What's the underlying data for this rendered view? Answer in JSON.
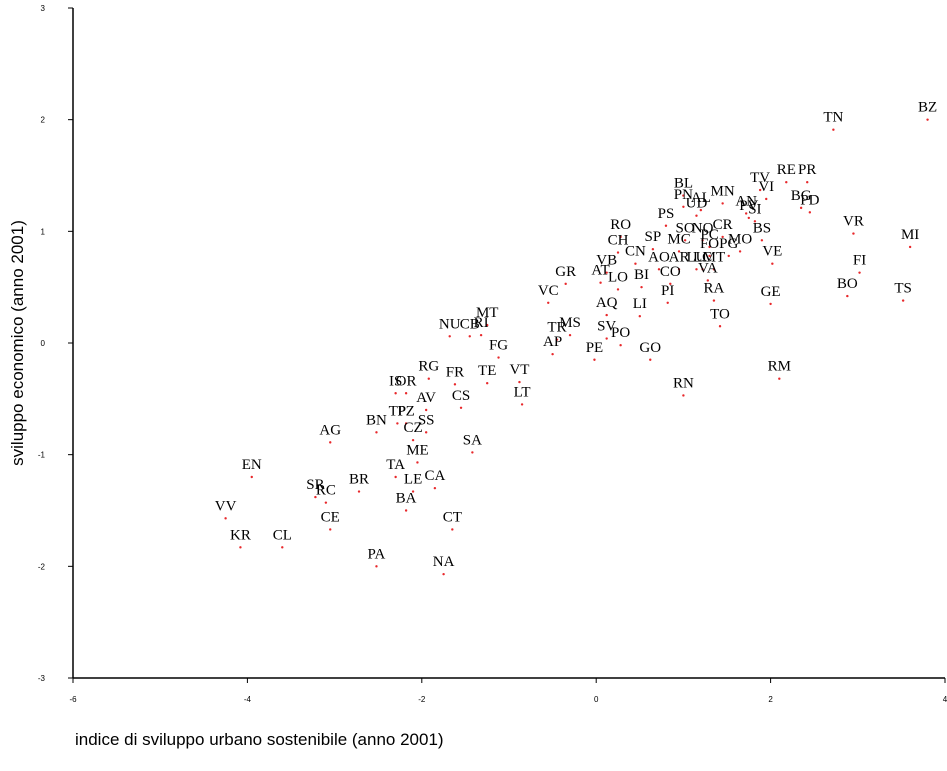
{
  "chart_data": {
    "type": "scatter",
    "xlabel": "indice di sviluppo urbano sostenibile (anno 2001)",
    "ylabel": "sviluppo economico (anno 2001)",
    "xlim": [
      -6,
      4
    ],
    "ylim": [
      -3,
      3
    ],
    "xticks": [
      -6,
      -4,
      -2,
      0,
      2,
      4
    ],
    "yticks": [
      -3,
      -2,
      -1,
      0,
      1,
      2,
      3
    ],
    "grid": false,
    "point_color": "#e8282b",
    "points": [
      {
        "label": "BZ",
        "x": 3.8,
        "y": 2.0
      },
      {
        "label": "TN",
        "x": 2.72,
        "y": 1.91
      },
      {
        "label": "MI",
        "x": 3.6,
        "y": 0.86
      },
      {
        "label": "VR",
        "x": 2.95,
        "y": 0.98
      },
      {
        "label": "FI",
        "x": 3.02,
        "y": 0.63
      },
      {
        "label": "BO",
        "x": 2.88,
        "y": 0.42
      },
      {
        "label": "TS",
        "x": 3.52,
        "y": 0.38
      },
      {
        "label": "RE",
        "x": 2.18,
        "y": 1.44
      },
      {
        "label": "PR",
        "x": 2.42,
        "y": 1.44
      },
      {
        "label": "TV",
        "x": 1.88,
        "y": 1.37
      },
      {
        "label": "VI",
        "x": 1.95,
        "y": 1.29
      },
      {
        "label": "BG",
        "x": 2.35,
        "y": 1.21
      },
      {
        "label": "PD",
        "x": 2.45,
        "y": 1.17
      },
      {
        "label": "PN",
        "x": 1.0,
        "y": 1.22
      },
      {
        "label": "BL",
        "x": 1.0,
        "y": 1.32
      },
      {
        "label": "UD",
        "x": 1.15,
        "y": 1.14
      },
      {
        "label": "AL",
        "x": 1.2,
        "y": 1.19
      },
      {
        "label": "MN",
        "x": 1.45,
        "y": 1.25
      },
      {
        "label": "AN",
        "x": 1.72,
        "y": 1.16
      },
      {
        "label": "PV",
        "x": 1.75,
        "y": 1.12
      },
      {
        "label": "SI",
        "x": 1.82,
        "y": 1.09
      },
      {
        "label": "BS",
        "x": 1.9,
        "y": 0.92
      },
      {
        "label": "PS",
        "x": 0.8,
        "y": 1.05
      },
      {
        "label": "RO",
        "x": 0.28,
        "y": 0.95
      },
      {
        "label": "SO",
        "x": 1.02,
        "y": 0.92
      },
      {
        "label": "NO",
        "x": 1.22,
        "y": 0.92
      },
      {
        "label": "CR",
        "x": 1.45,
        "y": 0.95
      },
      {
        "label": "PC",
        "x": 1.3,
        "y": 0.86
      },
      {
        "label": "MC",
        "x": 0.95,
        "y": 0.82
      },
      {
        "label": "FO",
        "x": 1.3,
        "y": 0.78
      },
      {
        "label": "PG",
        "x": 1.52,
        "y": 0.78
      },
      {
        "label": "MO",
        "x": 1.65,
        "y": 0.82
      },
      {
        "label": "SP",
        "x": 0.65,
        "y": 0.84
      },
      {
        "label": "CH",
        "x": 0.25,
        "y": 0.81
      },
      {
        "label": "CN",
        "x": 0.45,
        "y": 0.71
      },
      {
        "label": "AO",
        "x": 0.72,
        "y": 0.66
      },
      {
        "label": "AR",
        "x": 0.95,
        "y": 0.66
      },
      {
        "label": "LU",
        "x": 1.15,
        "y": 0.66
      },
      {
        "label": "LC",
        "x": 1.22,
        "y": 0.66
      },
      {
        "label": "MT",
        "x": 1.35,
        "y": 0.66
      },
      {
        "label": "VB",
        "x": 0.12,
        "y": 0.63
      },
      {
        "label": "CO",
        "x": 0.85,
        "y": 0.53
      },
      {
        "label": "VA",
        "x": 1.28,
        "y": 0.56
      },
      {
        "label": "VE",
        "x": 2.02,
        "y": 0.71
      },
      {
        "label": "GR",
        "x": -0.35,
        "y": 0.53
      },
      {
        "label": "AT",
        "x": 0.05,
        "y": 0.54
      },
      {
        "label": "LO",
        "x": 0.25,
        "y": 0.48
      },
      {
        "label": "BI",
        "x": 0.52,
        "y": 0.5
      },
      {
        "label": "RA",
        "x": 1.35,
        "y": 0.38
      },
      {
        "label": "GE",
        "x": 2.0,
        "y": 0.35
      },
      {
        "label": "VC",
        "x": -0.55,
        "y": 0.36
      },
      {
        "label": "PI",
        "x": 0.82,
        "y": 0.36
      },
      {
        "label": "AQ",
        "x": 0.12,
        "y": 0.25
      },
      {
        "label": "LI",
        "x": 0.5,
        "y": 0.24
      },
      {
        "label": "TO",
        "x": 1.42,
        "y": 0.15
      },
      {
        "label": "MT",
        "x": -1.25,
        "y": 0.16
      },
      {
        "label": "NU",
        "x": -1.68,
        "y": 0.06
      },
      {
        "label": "CB",
        "x": -1.45,
        "y": 0.06
      },
      {
        "label": "RI",
        "x": -1.32,
        "y": 0.07
      },
      {
        "label": "TR",
        "x": -0.45,
        "y": 0.03
      },
      {
        "label": "MS",
        "x": -0.3,
        "y": 0.07
      },
      {
        "label": "SV",
        "x": 0.12,
        "y": 0.04
      },
      {
        "label": "PO",
        "x": 0.28,
        "y": -0.02
      },
      {
        "label": "FG",
        "x": -1.12,
        "y": -0.13
      },
      {
        "label": "AP",
        "x": -0.5,
        "y": -0.1
      },
      {
        "label": "PE",
        "x": -0.02,
        "y": -0.15
      },
      {
        "label": "GO",
        "x": 0.62,
        "y": -0.15
      },
      {
        "label": "RG",
        "x": -1.92,
        "y": -0.32
      },
      {
        "label": "FR",
        "x": -1.62,
        "y": -0.37
      },
      {
        "label": "TE",
        "x": -1.25,
        "y": -0.36
      },
      {
        "label": "VT",
        "x": -0.88,
        "y": -0.35
      },
      {
        "label": "RM",
        "x": 2.1,
        "y": -0.32
      },
      {
        "label": "RN",
        "x": 1.0,
        "y": -0.47
      },
      {
        "label": "IS",
        "x": -2.3,
        "y": -0.45
      },
      {
        "label": "OR",
        "x": -2.18,
        "y": -0.45
      },
      {
        "label": "AV",
        "x": -1.95,
        "y": -0.6
      },
      {
        "label": "CS",
        "x": -1.55,
        "y": -0.58
      },
      {
        "label": "LT",
        "x": -0.85,
        "y": -0.55
      },
      {
        "label": "TP",
        "x": -2.28,
        "y": -0.72
      },
      {
        "label": "PZ",
        "x": -2.18,
        "y": -0.72
      },
      {
        "label": "BN",
        "x": -2.52,
        "y": -0.8
      },
      {
        "label": "SS",
        "x": -1.95,
        "y": -0.8
      },
      {
        "label": "CZ",
        "x": -2.1,
        "y": -0.87
      },
      {
        "label": "AG",
        "x": -3.05,
        "y": -0.89
      },
      {
        "label": "SA",
        "x": -1.42,
        "y": -0.98
      },
      {
        "label": "ME",
        "x": -2.05,
        "y": -1.07
      },
      {
        "label": "EN",
        "x": -3.95,
        "y": -1.2
      },
      {
        "label": "TA",
        "x": -2.3,
        "y": -1.2
      },
      {
        "label": "CA",
        "x": -1.85,
        "y": -1.3
      },
      {
        "label": "BR",
        "x": -2.72,
        "y": -1.33
      },
      {
        "label": "LE",
        "x": -2.1,
        "y": -1.33
      },
      {
        "label": "SR",
        "x": -3.22,
        "y": -1.38
      },
      {
        "label": "RC",
        "x": -3.1,
        "y": -1.43
      },
      {
        "label": "BA",
        "x": -2.18,
        "y": -1.5
      },
      {
        "label": "VV",
        "x": -4.25,
        "y": -1.57
      },
      {
        "label": "CE",
        "x": -3.05,
        "y": -1.67
      },
      {
        "label": "CT",
        "x": -1.65,
        "y": -1.67
      },
      {
        "label": "KR",
        "x": -4.08,
        "y": -1.83
      },
      {
        "label": "CL",
        "x": -3.6,
        "y": -1.83
      },
      {
        "label": "PA",
        "x": -2.52,
        "y": -2.0
      },
      {
        "label": "NA",
        "x": -1.75,
        "y": -2.07
      }
    ]
  }
}
